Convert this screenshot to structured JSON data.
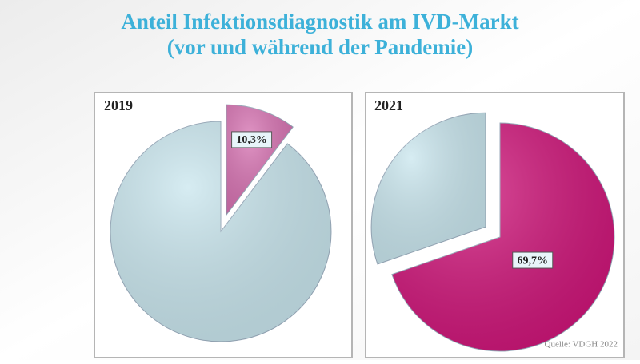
{
  "title": "Anteil Infektionsdiagnostik am IVD-Markt",
  "subtitle": "(vor und während der Pandemie)",
  "source": "Quelle: VDGH 2022",
  "chart_data": [
    {
      "type": "pie",
      "title": "2019",
      "values": [
        10.3,
        89.7
      ],
      "value_labels": [
        "10,3%",
        null
      ],
      "colors": [
        "#d772b2",
        "#c9e6ee"
      ],
      "exploded": 0
    },
    {
      "type": "pie",
      "title": "2021",
      "values": [
        69.7,
        30.3
      ],
      "value_labels": [
        "69,7%",
        null
      ],
      "colors": [
        "#cf1479",
        "#c9e6ee"
      ],
      "exploded": 1
    }
  ]
}
